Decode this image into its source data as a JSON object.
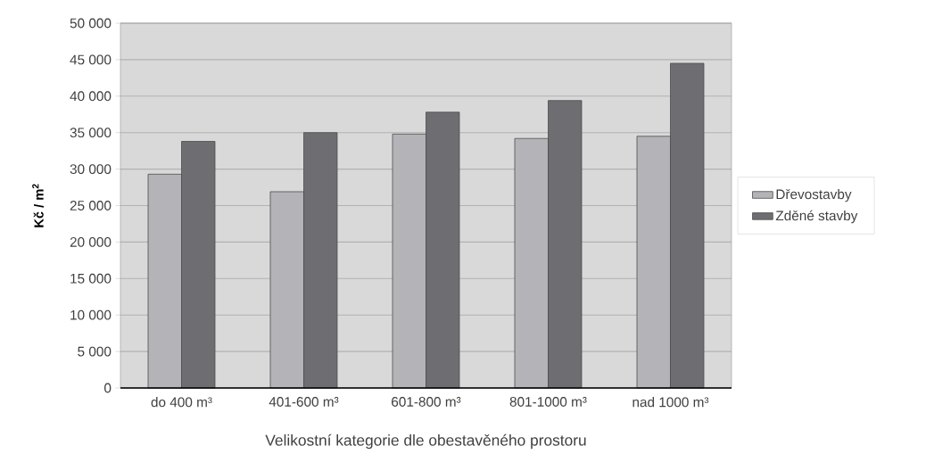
{
  "chart_data": {
    "type": "bar",
    "categories": [
      "do 400 m³",
      "401-600 m³",
      "601-800 m³",
      "801-1000 m³",
      "nad 1000 m³"
    ],
    "xlabel": "Velikostní kategorie dle obestavěného prostoru",
    "ylabel": "**Kč / m$^{2}$**",
    "series": [
      {
        "name": "Dřevostavby",
        "color": "#b4b4b8",
        "values": [
          29300,
          26900,
          34800,
          34200,
          34500
        ]
      },
      {
        "name": "Zděné stavby",
        "color": "#6e6e72",
        "values": [
          33800,
          35000,
          37800,
          39400,
          44500
        ]
      }
    ],
    "ylim": [
      0,
      50000
    ],
    "yticks": [
      {
        "value": 0,
        "label": "0"
      },
      {
        "value": 5000,
        "label": "5 000"
      },
      {
        "value": 10000,
        "label": "10 000"
      },
      {
        "value": 15000,
        "label": "15 000"
      },
      {
        "value": 20000,
        "label": "20 000"
      },
      {
        "value": 25000,
        "label": "25 000"
      },
      {
        "value": 30000,
        "label": "30 000"
      },
      {
        "value": 35000,
        "label": "35 000"
      },
      {
        "value": 40000,
        "label": "40 000"
      },
      {
        "value": 45000,
        "label": "45 000"
      },
      {
        "value": 50000,
        "label": "50 000"
      }
    ],
    "grid": "y",
    "legend": "right"
  }
}
